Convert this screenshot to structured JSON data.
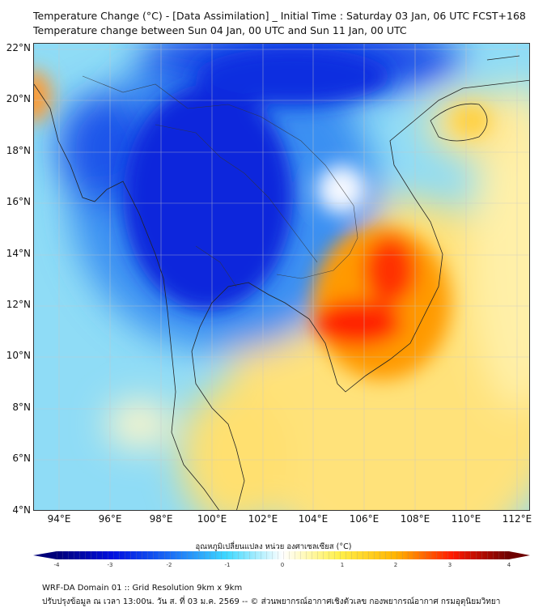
{
  "header": {
    "title": "Temperature Change (°C) - [Data Assimilation] _ Initial Time : Saturday 03 Jan, 06 UTC FCST+168",
    "subtitle": "Temperature change between Sun 04 Jan, 00 UTC and Sun 11 Jan, 00 UTC"
  },
  "map": {
    "lat_labels": [
      "22°N",
      "20°N",
      "18°N",
      "16°N",
      "14°N",
      "12°N",
      "10°N",
      "8°N",
      "6°N",
      "4°N"
    ],
    "lon_labels": [
      "94°E",
      "96°E",
      "98°E",
      "100°E",
      "102°E",
      "104°E",
      "106°E",
      "108°E",
      "110°E",
      "112°E"
    ]
  },
  "colorbar": {
    "title": "อุณหภูมิเปลี่ยนแปลง หน่วย องศาเซลเซียส (°C)",
    "ticks": [
      "-4",
      "-3",
      "-2",
      "-1",
      "0",
      "1",
      "2",
      "3",
      "4"
    ],
    "colors": [
      "#00007a",
      "#0010e0",
      "#1a6cf5",
      "#3ed8ff",
      "#ffffff",
      "#fff04a",
      "#ffb400",
      "#ff1a00",
      "#6e0000"
    ]
  },
  "footer": {
    "line1": "WRF-DA Domain 01 :: Grid Resolution 9km x 9km",
    "line2": "ปรับปรุงข้อมูล ณ เวลา 13:00น. วัน ส. ที่ 03 ม.ค. 2569 -- © ส่วนพยากรณ์อากาศเชิงตัวเลข กองพยากรณ์อากาศ กรมอุตุนิยมวิทยา"
  }
}
